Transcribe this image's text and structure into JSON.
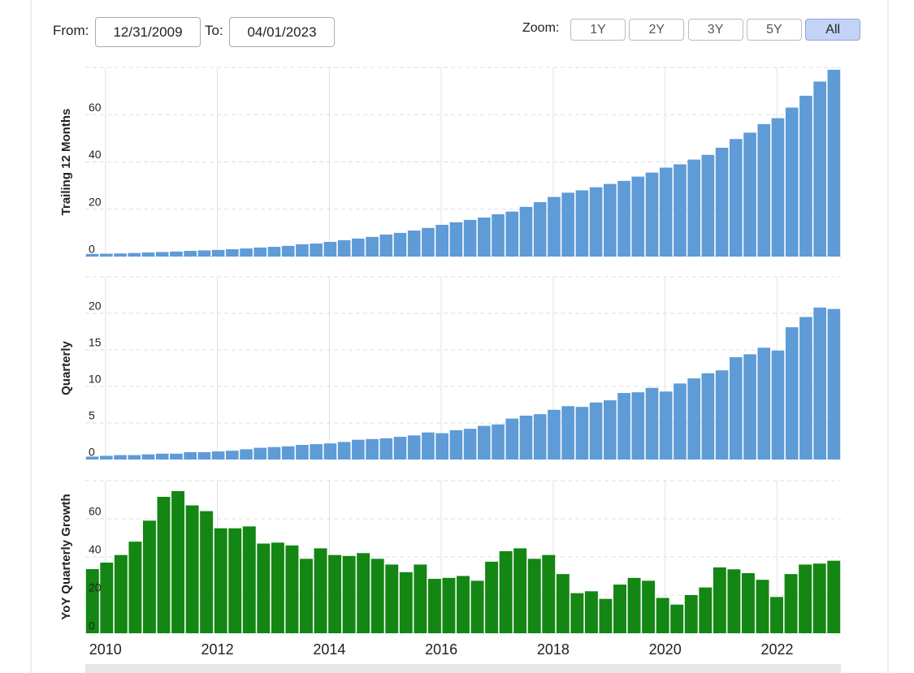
{
  "controls": {
    "from_label": "From:",
    "from_value": "12/31/2009",
    "to_label": "To:",
    "to_value": "04/01/2023",
    "zoom_label": "Zoom:",
    "zoom_buttons": [
      "1Y",
      "2Y",
      "3Y",
      "5Y",
      "All"
    ],
    "zoom_selected": "All"
  },
  "chart_data": [
    {
      "type": "bar",
      "ylabel": "Trailing 12 Months",
      "color": "#5e9bd7",
      "grid": true,
      "ylim": [
        0,
        80
      ],
      "yticks": [
        0,
        20,
        40,
        60
      ],
      "values": [
        1.1,
        1.2,
        1.3,
        1.5,
        1.7,
        1.9,
        2.1,
        2.4,
        2.6,
        2.8,
        3.1,
        3.4,
        3.8,
        4.1,
        4.5,
        5.2,
        5.5,
        6.2,
        6.9,
        7.6,
        8.3,
        9.3,
        10,
        11,
        12.1,
        13.4,
        14.5,
        15.5,
        16.5,
        17.9,
        19,
        21,
        23,
        25.2,
        27,
        28,
        29.3,
        30.7,
        32,
        33.8,
        35.5,
        37.6,
        39,
        41,
        43,
        46,
        49.7,
        52.4,
        56,
        58.5,
        63,
        68,
        74,
        79
      ]
    },
    {
      "type": "bar",
      "ylabel": "Quarterly",
      "color": "#5e9bd7",
      "grid": true,
      "ylim": [
        0,
        25
      ],
      "yticks": [
        0,
        5,
        10,
        15,
        20
      ],
      "values": [
        0.4,
        0.5,
        0.6,
        0.6,
        0.7,
        0.8,
        0.8,
        1,
        1,
        1.1,
        1.2,
        1.4,
        1.6,
        1.7,
        1.8,
        2,
        2.1,
        2.2,
        2.4,
        2.7,
        2.8,
        2.9,
        3.1,
        3.3,
        3.7,
        3.6,
        4,
        4.2,
        4.6,
        4.8,
        5.6,
        6,
        6.2,
        6.8,
        7.3,
        7.2,
        7.8,
        8.1,
        9.1,
        9.2,
        9.8,
        9.3,
        10.4,
        11.1,
        11.8,
        12.2,
        14,
        14.4,
        15.3,
        14.9,
        18.1,
        19.5,
        20.8,
        20.6
      ]
    },
    {
      "type": "bar",
      "ylabel": "YoY Quarterly Growth",
      "color": "#138613",
      "grid": true,
      "ylim": [
        0,
        80
      ],
      "yticks": [
        0,
        20,
        40,
        60
      ],
      "xlim": [
        2009.64,
        2023.14
      ],
      "xticks": [
        2010,
        2012,
        2014,
        2016,
        2018,
        2020,
        2022
      ],
      "values": [
        33.6,
        37,
        41,
        48,
        59,
        71.5,
        74.5,
        67,
        64,
        55,
        55,
        56,
        47,
        47.5,
        46,
        39,
        44.5,
        41,
        40.5,
        42,
        39,
        36,
        32,
        36,
        28.5,
        29,
        30,
        27.5,
        37.5,
        43,
        44.5,
        39,
        41,
        31,
        21,
        22,
        18,
        25.5,
        29,
        27.5,
        18.5,
        15,
        20,
        24,
        34.5,
        33.5,
        31.5,
        28,
        19,
        31,
        36,
        36.5,
        38
      ]
    }
  ]
}
